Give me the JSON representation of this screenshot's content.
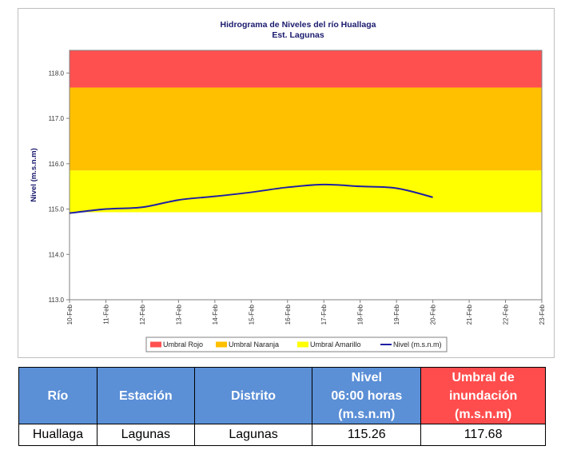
{
  "chart_data": {
    "type": "line",
    "title": "Hidrograma de Niveles del río Huallaga",
    "subtitle": "Est. Lagunas",
    "ylabel": "Nivel (m.s.n.m)",
    "ylim": [
      113.0,
      118.5
    ],
    "yticks": [
      "113.0",
      "114.0",
      "115.0",
      "116.0",
      "117.0",
      "118.0"
    ],
    "categories": [
      "10-Feb",
      "11-Feb",
      "12-Feb",
      "13-Feb",
      "14-Feb",
      "15-Feb",
      "16-Feb",
      "17-Feb",
      "18-Feb",
      "19-Feb",
      "20-Feb",
      "21-Feb",
      "22-Feb",
      "23-Feb"
    ],
    "bands": [
      {
        "name": "Umbral Rojo",
        "from": 117.68,
        "to": 118.5,
        "color": "#ff5050"
      },
      {
        "name": "Umbral Naranja",
        "from": 115.85,
        "to": 117.68,
        "color": "#ffc000"
      },
      {
        "name": "Umbral Amarillo",
        "from": 114.93,
        "to": 115.85,
        "color": "#ffff00"
      }
    ],
    "series": [
      {
        "name": "Nivel (m.s.n.m)",
        "color": "#1f1fa3",
        "x": [
          0,
          1,
          2,
          3,
          4,
          5,
          6,
          7,
          8,
          9,
          10
        ],
        "values": [
          114.91,
          115.0,
          115.04,
          115.2,
          115.28,
          115.37,
          115.48,
          115.54,
          115.5,
          115.46,
          115.26
        ]
      }
    ],
    "legend": {
      "position": "bottom",
      "items": [
        {
          "label": "Umbral Rojo",
          "color": "#ff5050",
          "kind": "box"
        },
        {
          "label": "Umbral Naranja",
          "color": "#ffc000",
          "kind": "box"
        },
        {
          "label": "Umbral Amarillo",
          "color": "#ffff00",
          "kind": "box"
        },
        {
          "label": "Nivel (m.s.n.m)",
          "color": "#1f1fa3",
          "kind": "line"
        }
      ]
    },
    "grid": false
  },
  "table": {
    "headers": {
      "rio": "Río",
      "estacion": "Estación",
      "distrito": "Distrito",
      "nivel_l1": "Nivel",
      "nivel_l2": "06:00 horas",
      "nivel_l3": "(m.s.n.m)",
      "umbral_l1": "Umbral de",
      "umbral_l2": "inundación",
      "umbral_l3": "(m.s.n.m)"
    },
    "row": {
      "rio": "Huallaga",
      "estacion": "Lagunas",
      "distrito": "Lagunas",
      "nivel": "115.26",
      "umbral": "117.68"
    },
    "colors": {
      "header_blue": "#5b8fd6",
      "header_red": "#ff4d4d"
    }
  }
}
